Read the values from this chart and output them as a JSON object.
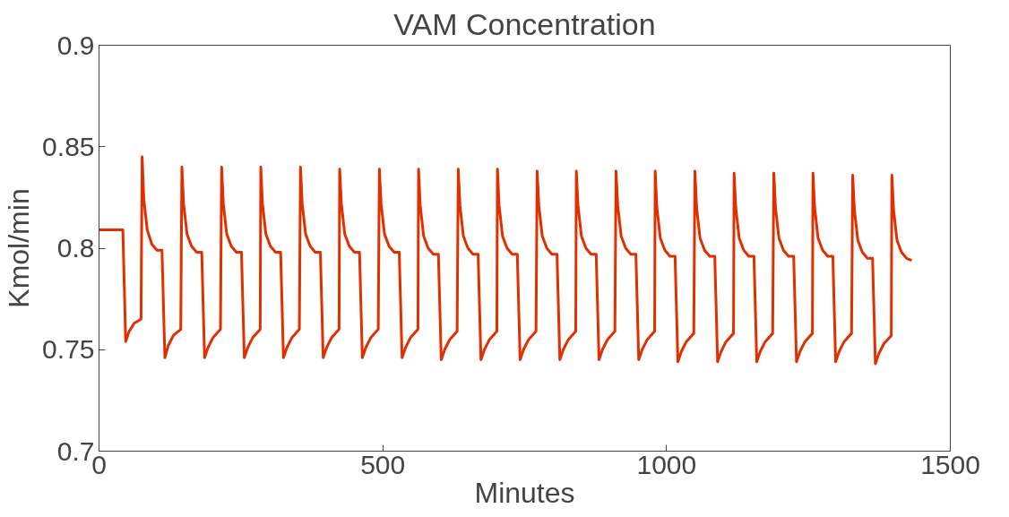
{
  "chart_data": {
    "type": "line",
    "title": "VAM Concentration",
    "xlabel": "Minutes",
    "ylabel": "Kmol/min",
    "xlim": [
      0,
      1500
    ],
    "xticks": [
      0,
      500,
      1000,
      1500
    ],
    "ylim": [
      0.7,
      0.9
    ],
    "yticks": [
      0.7,
      0.75,
      0.8,
      0.85,
      0.9
    ],
    "grid": false,
    "marker": "none",
    "line_style": "solid",
    "series": [
      {
        "color": "#e03000",
        "x": [
          0,
          42,
          47,
          53,
          62,
          74,
          76,
          79,
          85,
          93,
          102,
          111,
          116,
          122,
          131,
          144,
          146,
          149,
          155,
          163,
          172,
          181,
          186,
          192,
          201,
          214,
          216,
          219,
          225,
          233,
          242,
          251,
          256,
          262,
          271,
          284,
          285,
          288,
          294,
          302,
          311,
          320,
          325,
          331,
          340,
          353,
          355,
          358,
          364,
          372,
          381,
          390,
          395,
          401,
          410,
          423,
          424,
          427,
          433,
          441,
          450,
          459,
          464,
          470,
          479,
          492,
          494,
          497,
          503,
          511,
          520,
          529,
          534,
          540,
          549,
          562,
          563,
          566,
          572,
          580,
          589,
          598,
          603,
          609,
          618,
          631,
          633,
          636,
          642,
          650,
          659,
          668,
          673,
          679,
          688,
          701,
          702,
          705,
          711,
          719,
          728,
          737,
          742,
          748,
          757,
          770,
          772,
          775,
          781,
          789,
          798,
          807,
          812,
          818,
          827,
          840,
          841,
          844,
          850,
          858,
          867,
          876,
          881,
          887,
          896,
          909,
          911,
          914,
          920,
          928,
          937,
          946,
          951,
          957,
          966,
          979,
          980,
          983,
          989,
          997,
          1006,
          1015,
          1020,
          1026,
          1035,
          1048,
          1050,
          1053,
          1059,
          1067,
          1076,
          1085,
          1090,
          1096,
          1105,
          1118,
          1119,
          1122,
          1128,
          1136,
          1145,
          1154,
          1159,
          1165,
          1174,
          1187,
          1189,
          1192,
          1198,
          1206,
          1215,
          1224,
          1229,
          1235,
          1244,
          1257,
          1258,
          1261,
          1267,
          1275,
          1284,
          1293,
          1298,
          1304,
          1313,
          1326,
          1328,
          1331,
          1337,
          1345,
          1354,
          1363,
          1368,
          1374,
          1383,
          1396,
          1397,
          1400,
          1406,
          1414,
          1423,
          1432
        ],
        "values": [
          0.809,
          0.809,
          0.754,
          0.759,
          0.763,
          0.765,
          0.845,
          0.824,
          0.809,
          0.802,
          0.799,
          0.799,
          0.746,
          0.752,
          0.757,
          0.76,
          0.84,
          0.822,
          0.807,
          0.801,
          0.798,
          0.798,
          0.746,
          0.751,
          0.756,
          0.76,
          0.84,
          0.822,
          0.807,
          0.801,
          0.798,
          0.798,
          0.746,
          0.751,
          0.756,
          0.76,
          0.84,
          0.822,
          0.807,
          0.801,
          0.798,
          0.798,
          0.746,
          0.751,
          0.756,
          0.76,
          0.84,
          0.822,
          0.807,
          0.801,
          0.798,
          0.798,
          0.746,
          0.751,
          0.756,
          0.76,
          0.839,
          0.822,
          0.807,
          0.801,
          0.798,
          0.798,
          0.746,
          0.751,
          0.756,
          0.76,
          0.839,
          0.822,
          0.807,
          0.801,
          0.798,
          0.798,
          0.746,
          0.751,
          0.756,
          0.76,
          0.839,
          0.821,
          0.806,
          0.8,
          0.797,
          0.797,
          0.745,
          0.75,
          0.755,
          0.759,
          0.839,
          0.821,
          0.806,
          0.8,
          0.797,
          0.797,
          0.745,
          0.75,
          0.755,
          0.759,
          0.839,
          0.821,
          0.806,
          0.8,
          0.797,
          0.797,
          0.745,
          0.75,
          0.755,
          0.759,
          0.838,
          0.821,
          0.806,
          0.8,
          0.797,
          0.797,
          0.745,
          0.75,
          0.755,
          0.759,
          0.838,
          0.821,
          0.806,
          0.8,
          0.797,
          0.797,
          0.745,
          0.75,
          0.755,
          0.759,
          0.838,
          0.821,
          0.806,
          0.8,
          0.797,
          0.797,
          0.745,
          0.75,
          0.755,
          0.759,
          0.838,
          0.82,
          0.805,
          0.799,
          0.796,
          0.796,
          0.744,
          0.749,
          0.754,
          0.758,
          0.838,
          0.82,
          0.805,
          0.799,
          0.796,
          0.796,
          0.744,
          0.749,
          0.754,
          0.758,
          0.837,
          0.82,
          0.805,
          0.799,
          0.796,
          0.796,
          0.744,
          0.749,
          0.754,
          0.758,
          0.837,
          0.82,
          0.805,
          0.799,
          0.796,
          0.796,
          0.744,
          0.749,
          0.754,
          0.758,
          0.837,
          0.82,
          0.805,
          0.799,
          0.796,
          0.796,
          0.744,
          0.749,
          0.754,
          0.758,
          0.836,
          0.819,
          0.804,
          0.798,
          0.795,
          0.795,
          0.743,
          0.748,
          0.753,
          0.757,
          0.836,
          0.819,
          0.804,
          0.798,
          0.795,
          0.794
        ]
      }
    ]
  }
}
